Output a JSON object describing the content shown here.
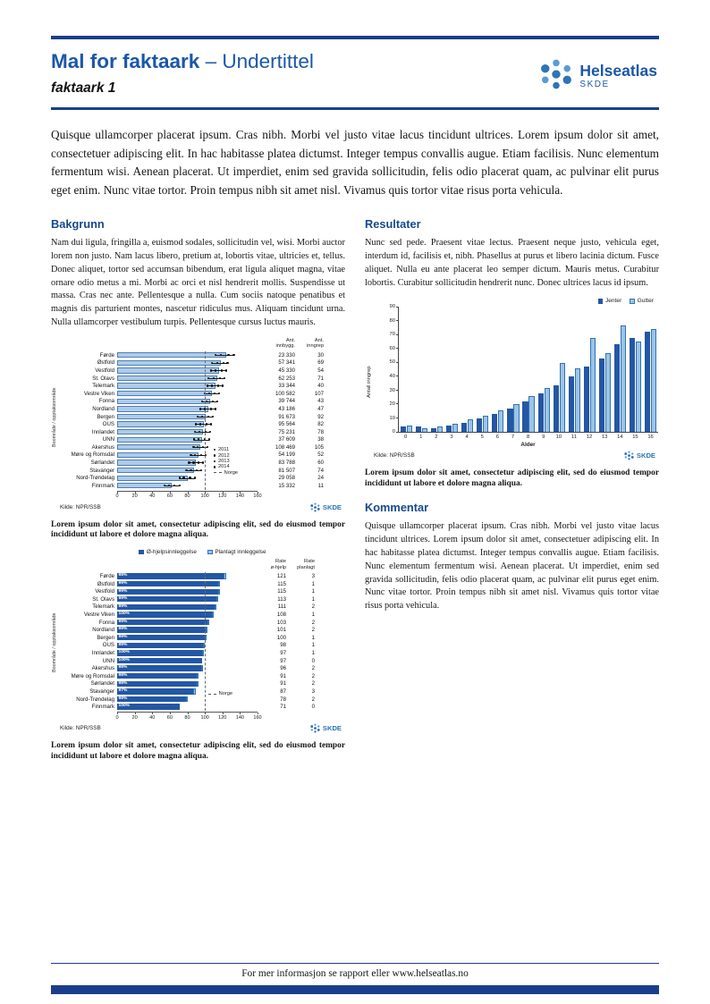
{
  "branding": {
    "name": "Helseatlas",
    "abbr": "SKDE"
  },
  "colors": {
    "navy": "#1B3E8C",
    "title_blue": "#1B57A8",
    "heading_blue": "#17498F",
    "bar_dark": "#2457A4",
    "bar_light": "#9DC3E6",
    "bar_pale": "#AECBE8"
  },
  "header": {
    "title_bold": "Mal for faktaark",
    "title_rest": " – Undertittel",
    "subtitle": "faktaark 1"
  },
  "intro": "Quisque ullamcorper placerat ipsum. Cras nibh. Morbi vel justo vitae lacus tincidunt ultrices. Lorem ipsum dolor sit amet, consectetuer adipiscing elit. In hac habitasse platea dictumst. Integer tempus convallis augue. Etiam facilisis. Nunc elementum fermentum wisi. Aenean placerat. Ut imperdiet, enim sed gravida sollicitudin, felis odio placerat quam, ac pulvinar elit purus eget enim. Nunc vitae tortor. Proin tempus nibh sit amet nisl. Vivamus quis tortor vitae risus porta vehicula.",
  "sections": {
    "bakgrunn": {
      "heading": "Bakgrunn",
      "body": "Nam dui ligula, fringilla a, euismod sodales, sollicitudin vel, wisi. Morbi auctor lorem non justo. Nam lacus libero, pretium at, lobortis vitae, ultricies et, tellus. Donec aliquet, tortor sed accumsan bibendum, erat ligula aliquet magna, vitae ornare odio metus a mi. Morbi ac orci et nisl hendrerit mollis. Suspendisse ut massa. Cras nec ante. Pellentesque a nulla. Cum sociis natoque penatibus et magnis dis parturient montes, nascetur ridiculus mus. Aliquam tincidunt urna. Nulla ullamcorper vestibulum turpis. Pellentesque cursus luctus mauris."
    },
    "resultater": {
      "heading": "Resultater",
      "body": "Nunc sed pede. Praesent vitae lectus. Praesent neque justo, vehicula eget, interdum id, facilisis et, nibh. Phasellus at purus et libero lacinia dictum. Fusce aliquet. Nulla eu ante placerat leo semper dictum. Mauris metus. Curabitur lobortis. Curabitur sollicitudin hendrerit nunc. Donec ultrices lacus id ipsum."
    },
    "kommentar": {
      "heading": "Kommentar",
      "body": "Quisque ullamcorper placerat ipsum. Cras nibh. Morbi vel justo vitae lacus tincidunt ultrices. Lorem ipsum dolor sit amet, consectetuer adipiscing elit. In hac habitasse platea dictumst. Integer tempus convallis augue. Etiam facilisis. Nunc elementum fermentum wisi. Aenean placerat. Ut imperdiet, enim sed gravida sollicitudin, felis odio placerat quam, ac pulvinar elit purus eget enim. Nunc vitae tortor. Proin tempus nibh sit amet nisl. Vivamus quis tortor vitae risus porta vehicula."
    }
  },
  "captions": {
    "caption1": "Lorem ipsum dolor sit amet, consectetur adipiscing elit, sed do eiusmod tempor incididunt ut labore et dolore magna aliqua.",
    "caption2": "Lorem ipsum dolor sit amet, consectetur adipiscing elit, sed do eiusmod tempor incididunt ut labore et dolore magna aliqua.",
    "caption3": "Lorem ipsum dolor sit amet, consectetur adipiscing elit, sed do eiusmod tempor incididunt ut labore et dolore magna aliqua."
  },
  "footer": "For mer informasjon se rapport eller www.helseatlas.no",
  "chart_data": [
    {
      "type": "bar",
      "orientation": "horizontal",
      "title": "",
      "ylabel": "Boområde / opptaksområde",
      "xlim": [
        0,
        160
      ],
      "xticks": [
        0,
        20,
        40,
        60,
        80,
        100,
        120,
        140,
        160
      ],
      "col_headers": [
        "Ant.\ninnbygg.",
        "Ant.\ninngrep"
      ],
      "legend_years": [
        "2011",
        "2012",
        "2013",
        "2014"
      ],
      "norge_label": "Norge",
      "norge_value": 100,
      "source": "Kilde: NPR/SSB",
      "rows": [
        {
          "label": "Førde",
          "rate": 124,
          "dots": [
            112,
            118,
            127,
            133
          ],
          "innbygg": "23 330",
          "inngrep": "30"
        },
        {
          "label": "Østfold",
          "rate": 118,
          "dots": [
            108,
            114,
            121,
            126
          ],
          "innbygg": "57 341",
          "inngrep": "69"
        },
        {
          "label": "Vestfold",
          "rate": 116,
          "dots": [
            107,
            112,
            119,
            124
          ],
          "innbygg": "45 330",
          "inngrep": "54"
        },
        {
          "label": "St. Olavs",
          "rate": 114,
          "dots": [
            104,
            110,
            117,
            122
          ],
          "innbygg": "62 253",
          "inngrep": "71"
        },
        {
          "label": "Telemark",
          "rate": 112,
          "dots": [
            103,
            108,
            115,
            120
          ],
          "innbygg": "33 344",
          "inngrep": "40"
        },
        {
          "label": "Vestre Viken",
          "rate": 108,
          "dots": [
            100,
            105,
            111,
            116
          ],
          "innbygg": "100 582",
          "inngrep": "107"
        },
        {
          "label": "Fonna",
          "rate": 106,
          "dots": [
            97,
            102,
            109,
            114
          ],
          "innbygg": "39 744",
          "inngrep": "43"
        },
        {
          "label": "Nordland",
          "rate": 104,
          "dots": [
            95,
            100,
            107,
            112
          ],
          "innbygg": "43 186",
          "inngrep": "47"
        },
        {
          "label": "Bergen",
          "rate": 101,
          "dots": [
            92,
            97,
            104,
            109
          ],
          "innbygg": "91 673",
          "inngrep": "92"
        },
        {
          "label": "OUS",
          "rate": 99,
          "dots": [
            90,
            95,
            102,
            107
          ],
          "innbygg": "95 564",
          "inngrep": "82"
        },
        {
          "label": "Innlandet",
          "rate": 98,
          "dots": [
            89,
            94,
            101,
            106
          ],
          "innbygg": "75 231",
          "inngrep": "78"
        },
        {
          "label": "UNN",
          "rate": 97,
          "dots": [
            88,
            93,
            100,
            105
          ],
          "innbygg": "37 609",
          "inngrep": "38"
        },
        {
          "label": "Akershus",
          "rate": 95,
          "dots": [
            87,
            92,
            98,
            103
          ],
          "innbygg": "108 469",
          "inngrep": "105"
        },
        {
          "label": "Møre og Romsdal",
          "rate": 93,
          "dots": [
            84,
            89,
            96,
            101
          ],
          "innbygg": "54 199",
          "inngrep": "52"
        },
        {
          "label": "Sørlandet",
          "rate": 90,
          "dots": [
            82,
            87,
            93,
            98
          ],
          "innbygg": "83 788",
          "inngrep": "60"
        },
        {
          "label": "Stavanger",
          "rate": 88,
          "dots": [
            79,
            84,
            91,
            96
          ],
          "innbygg": "81 507",
          "inngrep": "74"
        },
        {
          "label": "Nord-Trøndelag",
          "rate": 80,
          "dots": [
            71,
            76,
            83,
            89
          ],
          "innbygg": "29 058",
          "inngrep": "24"
        },
        {
          "label": "Finnmark",
          "rate": 62,
          "dots": [
            54,
            59,
            65,
            71
          ],
          "innbygg": "15 332",
          "inngrep": "11"
        }
      ]
    },
    {
      "type": "bar",
      "orientation": "horizontal",
      "stacked": true,
      "title": "",
      "series": [
        "Ø-hjelpsinnleggelse",
        "Planlagt innleggelse"
      ],
      "ylabel": "Boområde / opptaksområde",
      "xlim": [
        0,
        160
      ],
      "xticks": [
        0,
        20,
        40,
        60,
        80,
        100,
        120,
        140,
        160
      ],
      "col_headers": [
        "Rate\nø-hjelp",
        "Rate\nplanlagt"
      ],
      "norge_label": "Norge",
      "norge_value": 100,
      "source": "Kilde: NPR/SSB",
      "rows": [
        {
          "label": "Førde",
          "pct": "98%",
          "rate_ohjelp": 121,
          "rate_planlagt": 3
        },
        {
          "label": "Østfold",
          "pct": "99%",
          "rate_ohjelp": 115,
          "rate_planlagt": 1
        },
        {
          "label": "Vestfold",
          "pct": "99%",
          "rate_ohjelp": 115,
          "rate_planlagt": 1
        },
        {
          "label": "St. Olavs",
          "pct": "99%",
          "rate_ohjelp": 113,
          "rate_planlagt": 1
        },
        {
          "label": "Telemark",
          "pct": "99%",
          "rate_ohjelp": 111,
          "rate_planlagt": 2
        },
        {
          "label": "Vestre Viken",
          "pct": "100%",
          "rate_ohjelp": 108,
          "rate_planlagt": 1
        },
        {
          "label": "Fonna",
          "pct": "99%",
          "rate_ohjelp": 103,
          "rate_planlagt": 2
        },
        {
          "label": "Nordland",
          "pct": "99%",
          "rate_ohjelp": 101,
          "rate_planlagt": 2
        },
        {
          "label": "Bergen",
          "pct": "99%",
          "rate_ohjelp": 100,
          "rate_planlagt": 1
        },
        {
          "label": "OUS",
          "pct": "99%",
          "rate_ohjelp": 98,
          "rate_planlagt": 1
        },
        {
          "label": "Innlandet",
          "pct": "100%",
          "rate_ohjelp": 97,
          "rate_planlagt": 1
        },
        {
          "label": "UNN",
          "pct": "100%",
          "rate_ohjelp": 97,
          "rate_planlagt": 0
        },
        {
          "label": "Akershus",
          "pct": "98%",
          "rate_ohjelp": 96,
          "rate_planlagt": 2
        },
        {
          "label": "Møre og Romsdal",
          "pct": "98%",
          "rate_ohjelp": 91,
          "rate_planlagt": 2
        },
        {
          "label": "Sørlandet",
          "pct": "98%",
          "rate_ohjelp": 91,
          "rate_planlagt": 2
        },
        {
          "label": "Stavanger",
          "pct": "97%",
          "rate_ohjelp": 87,
          "rate_planlagt": 3
        },
        {
          "label": "Nord-Trøndelag",
          "pct": "98%",
          "rate_ohjelp": 78,
          "rate_planlagt": 2
        },
        {
          "label": "Finnmark",
          "pct": "100%",
          "rate_ohjelp": 71,
          "rate_planlagt": 0
        }
      ]
    },
    {
      "type": "bar",
      "title": "",
      "categories": [
        "0",
        "1",
        "2",
        "3",
        "4",
        "5",
        "6",
        "7",
        "8",
        "9",
        "10",
        "11",
        "12",
        "13",
        "14",
        "15",
        "16"
      ],
      "series": [
        {
          "name": "Jenter",
          "values": [
            4,
            4,
            3,
            5,
            7,
            10,
            13,
            17,
            22,
            28,
            34,
            40,
            47,
            53,
            63,
            68,
            72
          ]
        },
        {
          "name": "Gutter",
          "values": [
            5,
            3,
            4,
            6,
            9,
            12,
            16,
            20,
            26,
            32,
            50,
            46,
            68,
            57,
            77,
            65,
            74
          ]
        }
      ],
      "xlabel": "Alder",
      "ylabel": "Antall inngrep",
      "ylim": [
        0,
        90
      ],
      "yticks": [
        0,
        10,
        20,
        30,
        40,
        50,
        60,
        70,
        80,
        90
      ],
      "legend_position": "top-right",
      "grid": false,
      "source": "Kilde: NPR/SSB"
    }
  ]
}
